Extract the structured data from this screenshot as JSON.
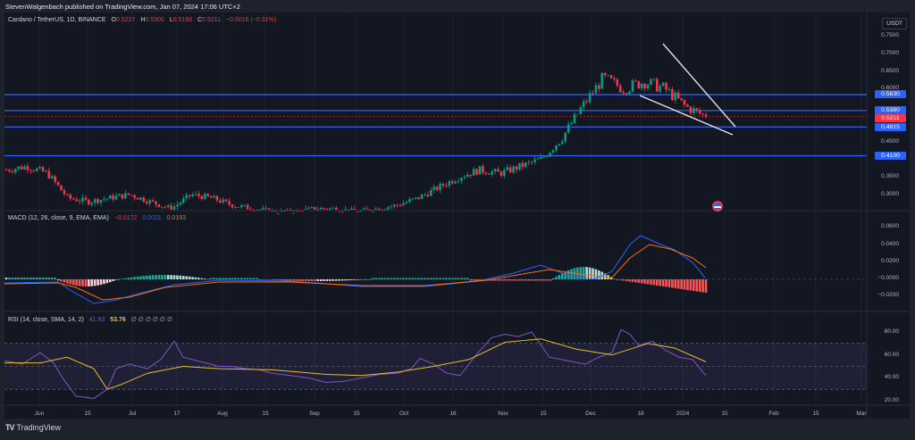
{
  "header": {
    "published": "StevenWalgenbach published on TradingView.com, Jan 07, 2024 17:06 UTC+2"
  },
  "symbol": {
    "name": "Cardano / TetherUS, 1D, BINANCE",
    "o_label": "O",
    "o": "0.5227",
    "h_label": "H",
    "h": "0.5300",
    "l_label": "L",
    "l": "0.5166",
    "c_label": "C",
    "c": "0.5211",
    "change": "−0.0016 (−0.31%)"
  },
  "currency": "USDT",
  "price_axis": [
    "0.7500",
    "0.7000",
    "0.6500",
    "0.6000",
    "0.4500",
    "0.3500",
    "0.3000"
  ],
  "levels": [
    {
      "value": "0.5830",
      "color": "#2962ff"
    },
    {
      "value": "0.5380",
      "color": "#2962ff"
    },
    {
      "value": "0.5211",
      "color": "#f23645"
    },
    {
      "value": "0.4915",
      "color": "#2962ff"
    },
    {
      "value": "0.4100",
      "color": "#2962ff"
    }
  ],
  "macd": {
    "label": "MACD (12, 26, close, 9, EMA, EMA)",
    "hist": "−0.0172",
    "macd": "0.0021",
    "signal": "0.0193",
    "axis": [
      "0.0600",
      "0.0400",
      "0.0200",
      "−0.0000",
      "−0.0200"
    ]
  },
  "rsi": {
    "label": "RSI (14, close, SMA, 14, 2)",
    "rsi": "41.83",
    "sma": "53.76",
    "extra": "∅ ∅ ∅ ∅ ∅ ∅",
    "axis": [
      "80.00",
      "60.00",
      "40.00",
      "20.00"
    ]
  },
  "time_axis": [
    "Jun",
    "15",
    "Jul",
    "17",
    "Aug",
    "15",
    "Sep",
    "15",
    "Oct",
    "16",
    "Nov",
    "15",
    "Dec",
    "18",
    "2024",
    "15",
    "Feb",
    "15",
    "Mar"
  ],
  "footer": {
    "brand": "TradingView",
    "logo": "TV"
  },
  "colors": {
    "up": "#089981",
    "down": "#f23645",
    "level": "#2962ff",
    "macd": "#2962ff",
    "signal": "#ff6d00",
    "rsi": "#7e57c2",
    "rsi_sma": "#e6c029"
  },
  "chart_data": {
    "type": "candlestick",
    "title": "Cardano / TetherUS, 1D, BINANCE",
    "ohlc_last": {
      "open": 0.5227,
      "high": 0.53,
      "low": 0.5166,
      "close": 0.5211
    },
    "x": [
      "Jun",
      "15",
      "Jul",
      "17",
      "Aug",
      "15",
      "Sep",
      "15",
      "Oct",
      "16",
      "Nov",
      "15",
      "Dec",
      "18",
      "2024",
      "15",
      "Feb",
      "15",
      "Mar"
    ],
    "ylim": [
      0.25,
      0.78
    ],
    "approx_closes": [
      0.37,
      0.38,
      0.36,
      0.29,
      0.28,
      0.29,
      0.3,
      0.28,
      0.26,
      0.3,
      0.29,
      0.27,
      0.26,
      0.25,
      0.25,
      0.26,
      0.26,
      0.25,
      0.26,
      0.27,
      0.29,
      0.32,
      0.35,
      0.37,
      0.36,
      0.38,
      0.4,
      0.46,
      0.55,
      0.63,
      0.6,
      0.62,
      0.6,
      0.55,
      0.52
    ],
    "horizontal_levels": [
      0.583,
      0.538,
      0.4915,
      0.41
    ],
    "trendlines": "falling wedge drawn from ~0.74 to ~0.49 (upper) and ~0.54 to ~0.47 (lower)",
    "indicators": {
      "macd": {
        "params": "12,26,close,9,EMA,EMA",
        "histogram": -0.0172,
        "macd": 0.0021,
        "signal": 0.0193,
        "ylim": [
          -0.025,
          0.08
        ]
      },
      "rsi": {
        "params": "14,close,SMA,14,2",
        "rsi": 41.83,
        "sma": 53.76,
        "bands": [
          30,
          50,
          70
        ],
        "ylim": [
          15,
          88
        ]
      }
    }
  }
}
